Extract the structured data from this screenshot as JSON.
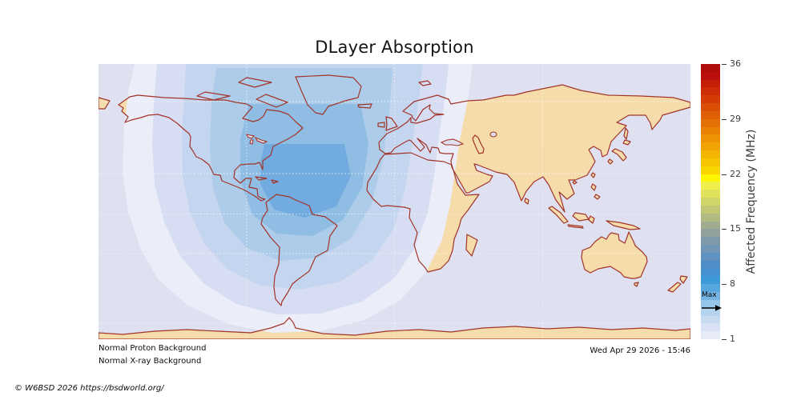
{
  "title": "DLayer Absorption",
  "statuses": {
    "proton": "Normal Proton Background",
    "xray": "Normal X-ray Background"
  },
  "timestamp": "Wed Apr 29 2026 - 15:46",
  "copyright": "© W6BSD 2026 https://bsdworld.org/",
  "colorbar": {
    "label": "Affected Frequency (MHz)",
    "min_mhz": 1,
    "max_mhz": 36,
    "ticks": [
      36,
      29,
      22,
      15,
      8,
      1
    ],
    "max_annotation": {
      "label": "Max",
      "value_mhz": 5.5
    },
    "colors_bottom_to_top": [
      "#e7eaf7",
      "#d9e2f4",
      "#c9dbf1",
      "#b3d3ee",
      "#95c5e9",
      "#75b4e3",
      "#57a7de",
      "#3e99d8",
      "#4591d2",
      "#4f8dc9",
      "#5f92c0",
      "#7095b5",
      "#8099a9",
      "#90a19c",
      "#a0ac8f",
      "#b0ba82",
      "#c0c775",
      "#d0d568",
      "#e0e25b",
      "#f0ef4e",
      "#fdf501",
      "#fad601",
      "#f7c502",
      "#f4b402",
      "#f0a303",
      "#ec9203",
      "#e88104",
      "#e37004",
      "#de5f04",
      "#d94e05",
      "#d33d05",
      "#cc2c06",
      "#c41d08",
      "#ba100b",
      "#b00d0d"
    ]
  },
  "map": {
    "ocean_color": "#dfe0f0",
    "land_color": "#f6dcaa",
    "coast_color": "#a23429",
    "grid_color": "#fafafa",
    "absorption_band_levels_mhz": [
      1,
      2,
      3,
      4,
      5,
      6
    ],
    "band_colors_outer_to_center": [
      "#ebedf8",
      "#d7ddf2",
      "#c4d5ef",
      "#accce9",
      "#8fbde4",
      "#71abdf"
    ],
    "gridlines": {
      "parallels": [
        "arctic-circle",
        "tropic-of-cancer",
        "equator",
        "tropic-of-capricorn",
        "antarctic-circle"
      ],
      "meridians_deg": [
        -90,
        0,
        90
      ]
    }
  }
}
